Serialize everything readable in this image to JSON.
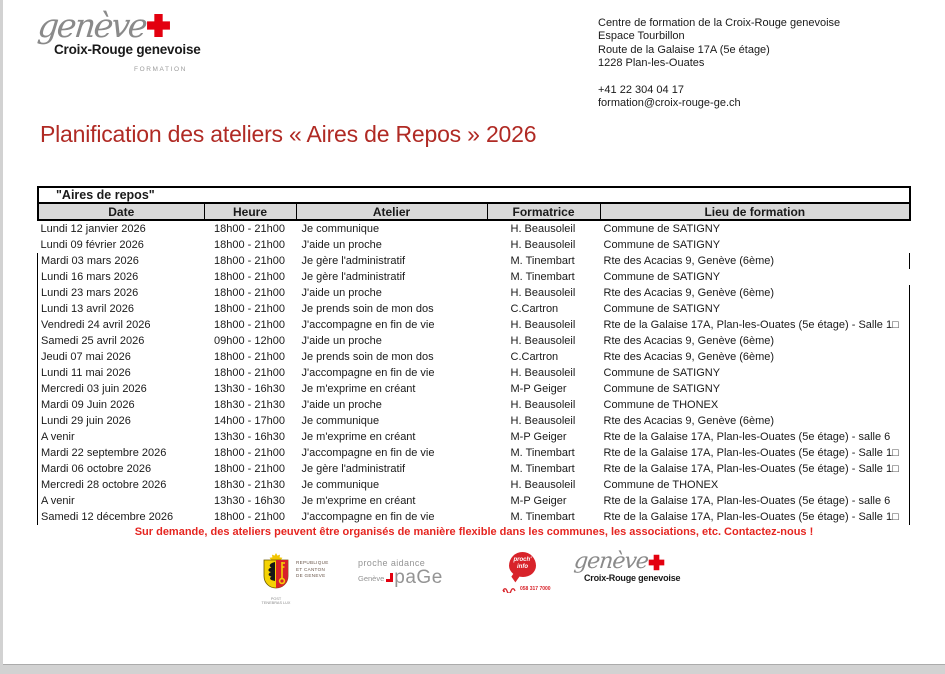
{
  "colors": {
    "title_red": "#B02A24",
    "bright_red": "#E52520",
    "cross_red": "#E3000F",
    "header_gray": "#D9D9D9",
    "logo_gray": "#8A8A8A"
  },
  "logo": {
    "geneve": "genève",
    "org": "Croix-Rouge genevoise",
    "formation": "FORMATION"
  },
  "contact": {
    "lines": [
      "Centre de formation de la Croix-Rouge genevoise",
      "Espace Tourbillon",
      "Route de la Galaise 17A (5e étage)",
      "1228 Plan-les-Ouates",
      "",
      "+41 22 304 04 17",
      "formation@croix-rouge-ge.ch"
    ]
  },
  "title": "Planification des ateliers « Aires de Repos » 2026",
  "table": {
    "caption": "\"Aires de repos\"",
    "columns": [
      "Date",
      "Heure",
      "Atelier",
      "Formatrice",
      "Lieu de formation"
    ],
    "rows": [
      [
        "Lundi 12 janvier 2026",
        "18h00 - 21h00",
        "Je communique",
        "H. Beausoleil",
        "Commune de SATIGNY"
      ],
      [
        "Lundi 09 février 2026",
        "18h00 - 21h00",
        "J'aide un proche",
        "H. Beausoleil",
        "Commune de SATIGNY"
      ],
      [
        "Mardi 03 mars 2026",
        "18h00 - 21h00",
        "Je gère l'administratif",
        "M. Tinembart",
        "Rte des Acacias 9, Genève (6ème)"
      ],
      [
        "Lundi 16 mars 2026",
        "18h00 - 21h00",
        "Je gère l'administratif",
        "M. Tinembart",
        "Commune de SATIGNY"
      ],
      [
        "Lundi 23 mars 2026",
        "18h00 - 21h00",
        "J'aide un proche",
        "H. Beausoleil",
        "Rte des Acacias 9, Genève (6ème)"
      ],
      [
        "Lundi 13 avril 2026",
        "18h00 - 21h00",
        "Je prends soin de mon dos",
        "C.Cartron",
        "Commune de SATIGNY"
      ],
      [
        "Vendredi 24 avril 2026",
        "18h00 - 21h00",
        "J'accompagne en fin de vie",
        "H. Beausoleil",
        "Rte de la Galaise 17A, Plan-les-Ouates (5e étage) - Salle 1□"
      ],
      [
        "Samedi 25 avril 2026",
        "09h00 - 12h00",
        "J'aide un proche",
        "H. Beausoleil",
        "Rte des Acacias 9, Genève (6ème)"
      ],
      [
        "Jeudi 07 mai 2026",
        "18h00 - 21h00",
        "Je prends soin de mon dos",
        "C.Cartron",
        "Rte des Acacias 9, Genève (6ème)"
      ],
      [
        "Lundi 11 mai 2026",
        "18h00 - 21h00",
        "J'accompagne en fin de vie",
        "H. Beausoleil",
        "Commune de SATIGNY"
      ],
      [
        "Mercredi 03 juin 2026",
        "13h30 - 16h30",
        "Je m'exprime en créant",
        "M-P Geiger",
        "Commune de SATIGNY"
      ],
      [
        "Mardi 09 Juin 2026",
        "18h30 - 21h30",
        "J'aide un proche",
        "H. Beausoleil",
        "Commune de THONEX"
      ],
      [
        "Lundi 29 juin 2026",
        "14h00 - 17h00",
        "Je communique",
        "H. Beausoleil",
        "Rte des Acacias 9, Genève (6ème)"
      ],
      [
        "A venir",
        "13h30 - 16h30",
        "Je m'exprime en créant",
        "M-P Geiger",
        "Rte de la Galaise 17A, Plan-les-Ouates (5e étage) - salle 6"
      ],
      [
        "Mardi 22 septembre 2026",
        "18h00 - 21h00",
        "J'accompagne en fin de vie",
        "M. Tinembart",
        "Rte de la Galaise 17A, Plan-les-Ouates (5e étage) - Salle 1□"
      ],
      [
        "Mardi 06 octobre 2026",
        "18h00 - 21h00",
        "Je gère l'administratif",
        "M. Tinembart",
        "Rte de la Galaise 17A, Plan-les-Ouates (5e étage) - Salle 1□"
      ],
      [
        "Mercredi 28 octobre 2026",
        "18h30 - 21h30",
        "Je communique",
        "H. Beausoleil",
        "Commune de THONEX"
      ],
      [
        "A venir",
        "13h30 - 16h30",
        "Je m'exprime en créant",
        "M-P Geiger",
        "Rte de la Galaise 17A, Plan-les-Ouates (5e étage) - salle 6"
      ],
      [
        "Samedi 12 décembre 2026",
        "18h00 - 21h00",
        "J'accompagne en fin de vie",
        "M. Tinembart",
        "Rte de la Galaise 17A, Plan-les-Ouates (5e étage) - Salle 1□"
      ]
    ]
  },
  "note": "Sur demande, des ateliers peuvent être organisés de manière flexible dans les communes, les associations, etc. Contactez-nous !",
  "footer": {
    "canton": {
      "line1": "REPUBLIQUE",
      "line2": "ET CANTON",
      "line3": "DE GENEVE",
      "motto": "POST TENEBRAS LUX"
    },
    "proche_aidance": {
      "top": "proche aidance",
      "geneve": "Genève",
      "brand": "paGe"
    },
    "prochinfo": {
      "bubble_line1": "proch'",
      "bubble_line2": "info",
      "phone": "058 317 7000"
    },
    "crg": {
      "geneve": "genève",
      "org": "Croix-Rouge genevoise"
    }
  }
}
